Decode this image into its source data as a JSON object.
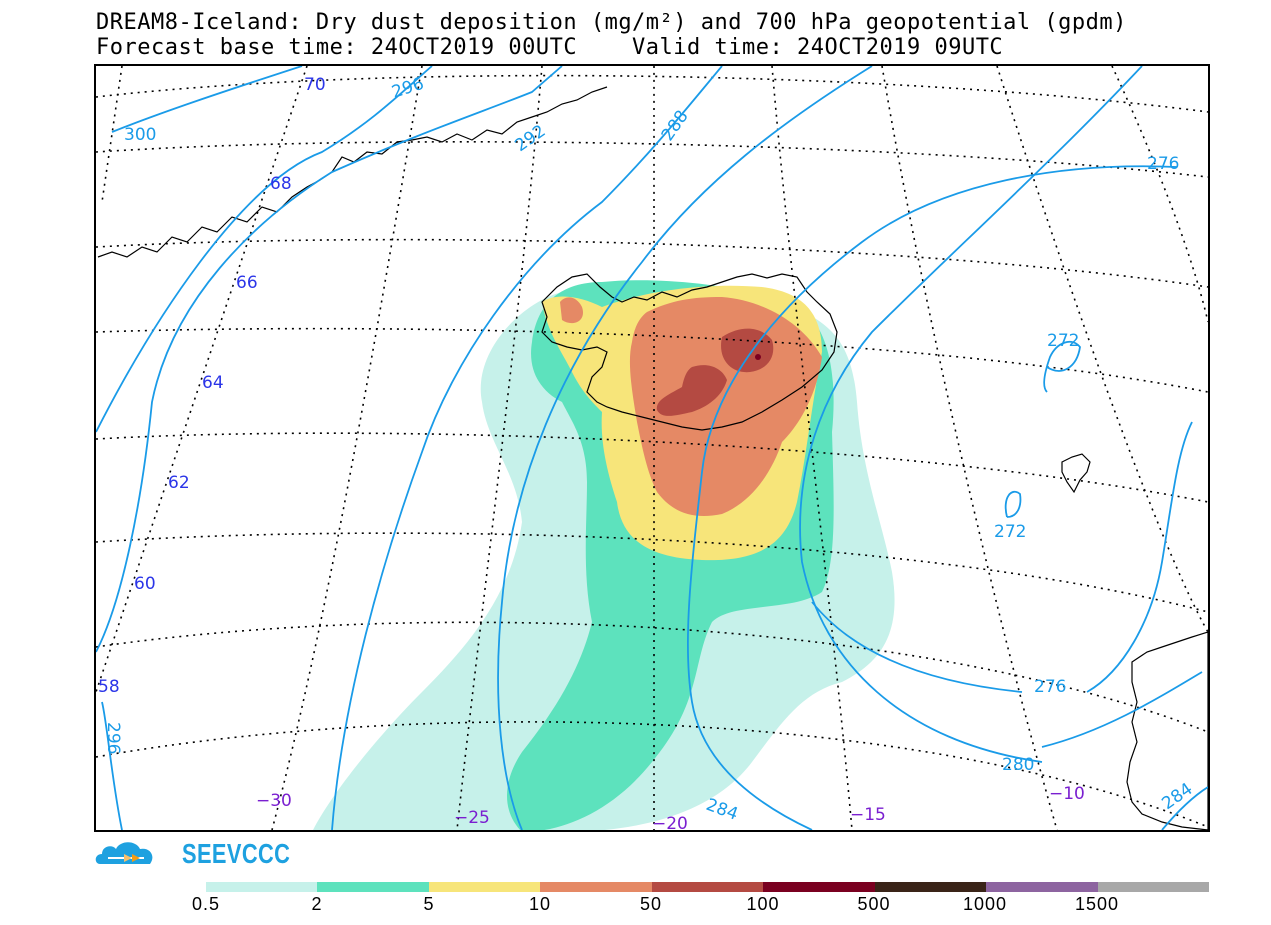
{
  "header": {
    "title_line1": "DREAM8-Iceland: Dry dust deposition (mg/m²) and 700 hPa geopotential (gpdm)",
    "title_line2": "Forecast base time: 24OCT2019 00UTC    Valid time: 24OCT2019 09UTC"
  },
  "map": {
    "latitude_labels": [
      "70",
      "68",
      "66",
      "64",
      "62",
      "60",
      "58"
    ],
    "longitude_labels": [
      "−30",
      "−25",
      "−20",
      "−15",
      "−10"
    ],
    "contour_labels": [
      "300",
      "296",
      "292",
      "288",
      "276",
      "272",
      "272",
      "276",
      "280",
      "284",
      "284",
      "296"
    ],
    "colors": {
      "latlon_label": "#2b35e8",
      "lon_label": "#7a1fd0",
      "contour": "#1a9be8",
      "coast": "#000000"
    }
  },
  "logo": {
    "text": "SEEVCCC",
    "icon": "cloud-logo-icon"
  },
  "legend": {
    "labels": [
      "0.5",
      "2",
      "5",
      "10",
      "50",
      "100",
      "500",
      "1000",
      "1500"
    ],
    "colors": [
      "#c6f1ea",
      "#5de2bd",
      "#f7e57a",
      "#e58965",
      "#b44a42",
      "#7a0020",
      "#3a2418",
      "#8d64a0",
      "#a8a8a8"
    ]
  }
}
